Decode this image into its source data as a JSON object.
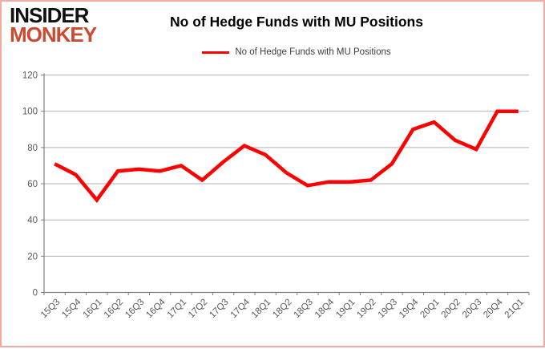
{
  "brand": {
    "name": "Insider Monkey",
    "line1": "INSIDER",
    "line2": "MONKEY",
    "monkey_color": "#cd4a32"
  },
  "title": "No of Hedge Funds with MU Positions",
  "legend": {
    "label": "No of Hedge Funds with MU Positions"
  },
  "chart_data": {
    "type": "line",
    "title": "No of Hedge Funds with MU Positions",
    "categories": [
      "15Q3",
      "15Q4",
      "16Q1",
      "16Q2",
      "16Q3",
      "16Q4",
      "17Q1",
      "17Q2",
      "17Q3",
      "17Q4",
      "18Q1",
      "18Q2",
      "18Q3",
      "18Q4",
      "19Q1",
      "19Q2",
      "19Q3",
      "19Q4",
      "20Q1",
      "20Q2",
      "20Q3",
      "20Q4",
      "21Q1"
    ],
    "series": [
      {
        "name": "No of Hedge Funds with MU Positions",
        "color": "#ff0000",
        "values": [
          71,
          65,
          51,
          67,
          68,
          67,
          70,
          62,
          72,
          81,
          76,
          66,
          59,
          61,
          61,
          62,
          71,
          90,
          94,
          84,
          79,
          100,
          100
        ]
      }
    ],
    "ylim": [
      0,
      120
    ],
    "yticks": [
      0,
      20,
      40,
      60,
      80,
      100,
      120
    ],
    "grid": true,
    "legend_position": "top-center",
    "line_width": 4.5
  },
  "style": {
    "grid_color": "#b3b3b3",
    "axis_color": "#808080",
    "tick_label_color": "#595959",
    "border_color": "#f2aca4",
    "series_color": "#ff0000"
  }
}
